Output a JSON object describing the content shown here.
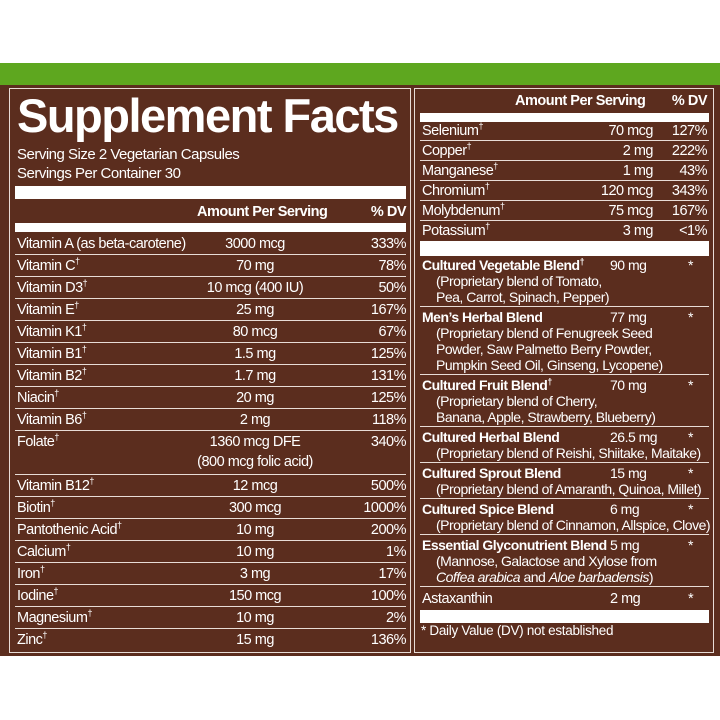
{
  "title": "Supplement Facts",
  "serving_size": "Serving Size 2 Vegetarian Capsules",
  "servings_per_container": "Servings Per Container 30",
  "header": {
    "amount": "Amount Per Serving",
    "dv": "% DV"
  },
  "colors": {
    "brown": "#5b2d1e",
    "green": "#5ea71f",
    "text": "#ffffff"
  },
  "left_rows": [
    {
      "name": "Vitamin A (as beta-carotene)",
      "dagger": "",
      "amount": "3000 mcg",
      "dv": "333%"
    },
    {
      "name": "Vitamin C",
      "dagger": "†",
      "amount": "70 mg",
      "dv": "78%"
    },
    {
      "name": "Vitamin D3",
      "dagger": "†",
      "amount": "10 mcg (400 IU)",
      "dv": "50%"
    },
    {
      "name": "Vitamin E",
      "dagger": "†",
      "amount": "25 mg",
      "dv": "167%"
    },
    {
      "name": "Vitamin K1",
      "dagger": "†",
      "amount": "80 mcg",
      "dv": "67%"
    },
    {
      "name": "Vitamin B1",
      "dagger": "†",
      "amount": "1.5 mg",
      "dv": "125%"
    },
    {
      "name": "Vitamin B2",
      "dagger": "†",
      "amount": "1.7 mg",
      "dv": "131%"
    },
    {
      "name": "Niacin",
      "dagger": "†",
      "amount": "20 mg",
      "dv": "125%"
    },
    {
      "name": "Vitamin B6",
      "dagger": "†",
      "amount": "2 mg",
      "dv": "118%"
    },
    {
      "name": "Folate",
      "dagger": "†",
      "amount": "1360 mcg DFE",
      "amount2": "(800 mcg folic acid)",
      "dv": "340%"
    },
    {
      "name": "Vitamin B12",
      "dagger": "†",
      "amount": "12 mcg",
      "dv": "500%"
    },
    {
      "name": "Biotin",
      "dagger": "†",
      "amount": "300 mcg",
      "dv": "1000%"
    },
    {
      "name": "Pantothenic Acid",
      "dagger": "†",
      "amount": "10 mg",
      "dv": "200%"
    },
    {
      "name": "Calcium",
      "dagger": "†",
      "amount": "10 mg",
      "dv": "1%"
    },
    {
      "name": "Iron",
      "dagger": "†",
      "amount": "3 mg",
      "dv": "17%"
    },
    {
      "name": "Iodine",
      "dagger": "†",
      "amount": "150 mcg",
      "dv": "100%"
    },
    {
      "name": "Magnesium",
      "dagger": "†",
      "amount": "10 mg",
      "dv": "2%"
    },
    {
      "name": "Zinc",
      "dagger": "†",
      "amount": "15 mg",
      "dv": "136%"
    }
  ],
  "right_rows": [
    {
      "name": "Selenium",
      "dagger": "†",
      "amount": "70 mcg",
      "dv": "127%"
    },
    {
      "name": "Copper",
      "dagger": "†",
      "amount": "2 mg",
      "dv": "222%"
    },
    {
      "name": "Manganese",
      "dagger": "†",
      "amount": "1 mg",
      "dv": "43%"
    },
    {
      "name": "Chromium",
      "dagger": "†",
      "amount": "120 mcg",
      "dv": "343%"
    },
    {
      "name": "Molybdenum",
      "dagger": "†",
      "amount": "75 mcg",
      "dv": "167%"
    },
    {
      "name": "Potassium",
      "dagger": "†",
      "amount": "3 mg",
      "dv": "<1%"
    }
  ],
  "blends": [
    {
      "name": "Cultured Vegetable Blend",
      "dagger": "†",
      "amount": "90 mg",
      "dv": "*",
      "desc": [
        "(Proprietary blend of Tomato,",
        "Pea, Carrot, Spinach, Pepper)"
      ]
    },
    {
      "name": "Men’s Herbal Blend",
      "dagger": "",
      "amount": "77 mg",
      "dv": "*",
      "desc": [
        "(Proprietary blend of Fenugreek Seed",
        "Powder, Saw Palmetto Berry Powder,",
        "Pumpkin Seed Oil, Ginseng, Lycopene)"
      ]
    },
    {
      "name": "Cultured Fruit Blend",
      "dagger": "†",
      "amount": "70 mg",
      "dv": "*",
      "desc": [
        "(Proprietary blend of Cherry,",
        "Banana, Apple, Strawberry, Blueberry)"
      ]
    },
    {
      "name": "Cultured Herbal Blend",
      "dagger": "",
      "amount": "26.5 mg",
      "dv": "*",
      "desc": [
        "(Proprietary blend of Reishi, Shiitake, Maitake)"
      ]
    },
    {
      "name": "Cultured Sprout Blend",
      "dagger": "",
      "amount": "15 mg",
      "dv": "*",
      "desc": [
        "(Proprietary blend of Amaranth, Quinoa, Millet)"
      ]
    },
    {
      "name": "Cultured Spice Blend",
      "dagger": "",
      "amount": "6 mg",
      "dv": "*",
      "desc": [
        "(Proprietary blend of Cinnamon, Allspice, Clove)"
      ]
    },
    {
      "name": "Essential Glyconutrient Blend",
      "dagger": "",
      "amount": "5 mg",
      "dv": "*",
      "desc": [
        "(Mannose, Galactose and Xylose from"
      ],
      "desc_rich": {
        "a": "Coffea arabica",
        "b": " and ",
        "c": "Aloe barbadensis",
        "d": ")"
      }
    }
  ],
  "astaxanthin": {
    "name": "Astaxanthin",
    "amount": "2 mg",
    "dv": "*"
  },
  "footnote": "* Daily Value (DV) not established"
}
